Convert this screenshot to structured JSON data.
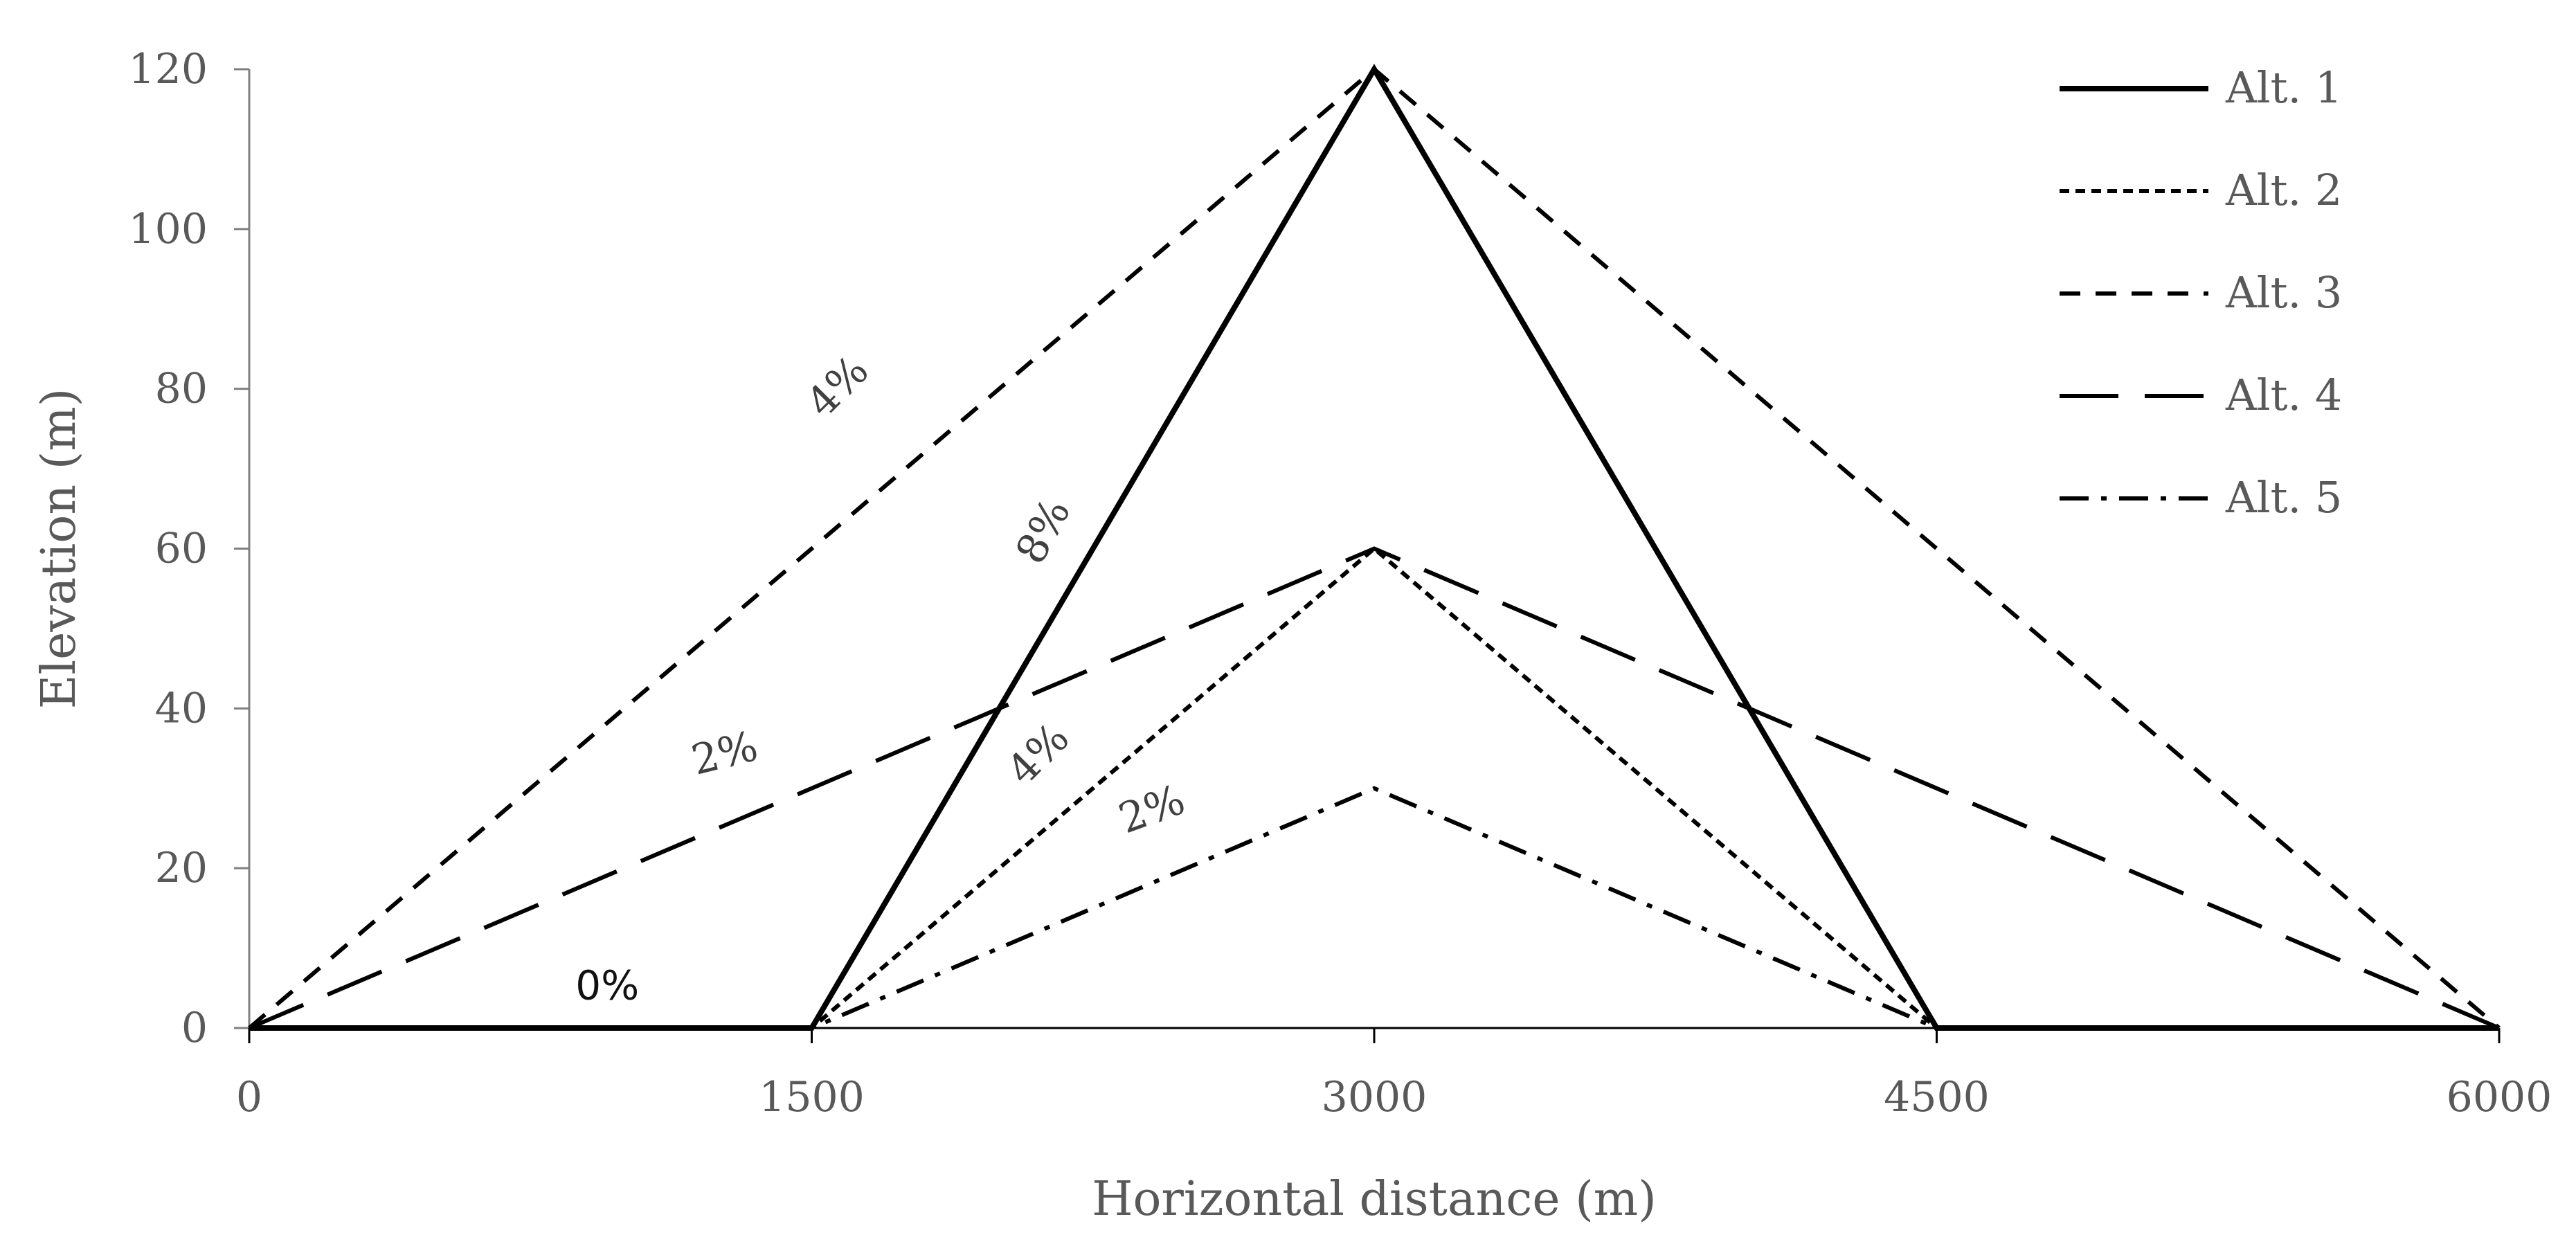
{
  "chart_data": {
    "type": "line",
    "xlabel": "Horizontal distance (m)",
    "ylabel": "Elevation (m)",
    "xlim": [
      0,
      6000
    ],
    "ylim": [
      0,
      120
    ],
    "x_ticks": [
      "0",
      "1500",
      "3000",
      "4500",
      "6000"
    ],
    "y_ticks": [
      "0",
      "20",
      "40",
      "60",
      "80",
      "100",
      "120"
    ],
    "grid": false,
    "legend_position": "top-right",
    "series": [
      {
        "name": "Alt. 1",
        "style": "solid",
        "x": [
          0,
          1500,
          3000,
          4500,
          6000
        ],
        "y": [
          0,
          0,
          120,
          0,
          0
        ]
      },
      {
        "name": "Alt. 2",
        "style": "dotted",
        "x": [
          0,
          1500,
          3000,
          4500,
          6000
        ],
        "y": [
          0,
          0,
          60,
          0,
          0
        ]
      },
      {
        "name": "Alt. 3",
        "style": "dashed",
        "x": [
          0,
          3000,
          6000
        ],
        "y": [
          0,
          120,
          0
        ]
      },
      {
        "name": "Alt. 4",
        "style": "longdash",
        "x": [
          0,
          3000,
          6000
        ],
        "y": [
          0,
          60,
          0
        ]
      },
      {
        "name": "Alt. 5",
        "style": "dashdot",
        "x": [
          0,
          1500,
          3000,
          4500,
          6000
        ],
        "y": [
          0,
          0,
          30,
          0,
          0
        ]
      }
    ],
    "annotations": [
      {
        "text": "4%",
        "x": 1575,
        "y": 80,
        "rotate": -45,
        "font": "serif"
      },
      {
        "text": "8%",
        "x": 2125,
        "y": 62,
        "rotate": -62,
        "font": "serif"
      },
      {
        "text": "2%",
        "x": 1270,
        "y": 34,
        "rotate": -14,
        "font": "serif"
      },
      {
        "text": "4%",
        "x": 2110,
        "y": 34,
        "rotate": -45,
        "font": "serif"
      },
      {
        "text": "2%",
        "x": 2410,
        "y": 27,
        "rotate": -20,
        "font": "serif"
      },
      {
        "text": "0%",
        "x": 955,
        "y": 5,
        "rotate": 0,
        "font": "sans"
      }
    ],
    "colors": {
      "line": "#000000",
      "axis": "#808080",
      "text": "#595959"
    }
  }
}
